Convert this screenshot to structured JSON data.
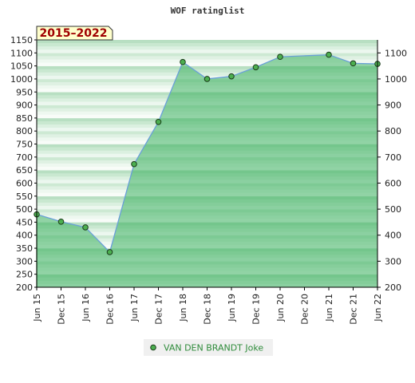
{
  "chart_data": {
    "type": "area",
    "title": "WOF ratinglist",
    "badge": "2015–2022",
    "x": [
      "Jun 15",
      "Dec 15",
      "Jun 16",
      "Dec 16",
      "Jun 17",
      "Dec 17",
      "Jun 18",
      "Dec 18",
      "Jun 19",
      "Dec 19",
      "Jun 20",
      "Dec 20",
      "Jun 21",
      "Dec 21",
      "Jun 22"
    ],
    "series": [
      {
        "name": "VAN DEN BRANDT Joke",
        "points": [
          {
            "x": "Jun 15",
            "y": 480
          },
          {
            "x": "Dec 15",
            "y": 452
          },
          {
            "x": "Jun 16",
            "y": 430
          },
          {
            "x": "Dec 16",
            "y": 335
          },
          {
            "x": "Jun 17",
            "y": 673
          },
          {
            "x": "Dec 17",
            "y": 835
          },
          {
            "x": "Jun 18",
            "y": 1065
          },
          {
            "x": "Dec 18",
            "y": 1000
          },
          {
            "x": "Jun 19",
            "y": 1010
          },
          {
            "x": "Dec 19",
            "y": 1045
          },
          {
            "x": "Jun 20",
            "y": 1085
          },
          {
            "x": "Jun 21",
            "y": 1093
          },
          {
            "x": "Dec 21",
            "y": 1060
          },
          {
            "x": "Jun 22",
            "y": 1058
          }
        ]
      }
    ],
    "y_left_ticks": [
      200,
      250,
      300,
      350,
      400,
      450,
      500,
      550,
      600,
      650,
      700,
      750,
      800,
      850,
      900,
      950,
      1000,
      1050,
      1100,
      1150
    ],
    "y_right_ticks": [
      200,
      300,
      400,
      500,
      600,
      700,
      800,
      900,
      1000,
      1100
    ],
    "ylim": [
      200,
      1150
    ],
    "legend_position": "bottom-center",
    "colors": {
      "area_fill": "#3cb060",
      "line": "#6aa0d8",
      "marker_fill": "#4caf50",
      "marker_stroke": "#1a3a1a",
      "badge_bg": "#ffffcc",
      "badge_text": "#a00000",
      "legend_text": "#2e8b3a"
    }
  }
}
